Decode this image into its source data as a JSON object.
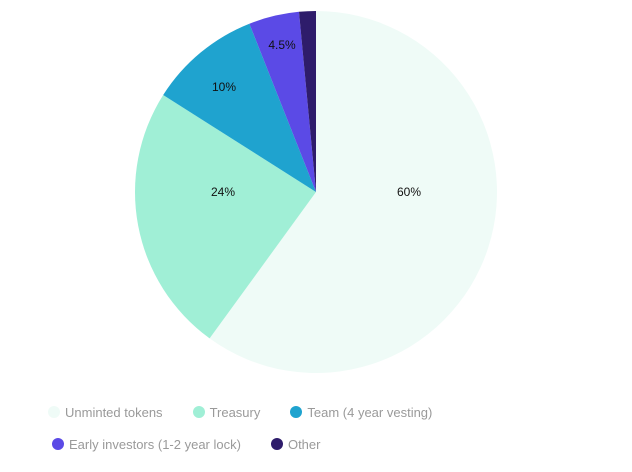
{
  "chart_data": {
    "type": "pie",
    "start_angle": "top, clockwise",
    "legend_position": "bottom",
    "slices": [
      {
        "name": "Unminted tokens",
        "value": 60,
        "label": "60%",
        "color": "#effbf7"
      },
      {
        "name": "Treasury",
        "value": 24,
        "label": "24%",
        "color": "#a0efd6"
      },
      {
        "name": "Team (4 year vesting)",
        "value": 10,
        "label": "10%",
        "color": "#1fa3cf"
      },
      {
        "name": "Early investors (1-2 year lock)",
        "value": 4.5,
        "label": "4.5%",
        "color": "#5b4ae6"
      },
      {
        "name": "Other",
        "value": 1.5,
        "label": "",
        "color": "#2e1c6b"
      }
    ]
  }
}
